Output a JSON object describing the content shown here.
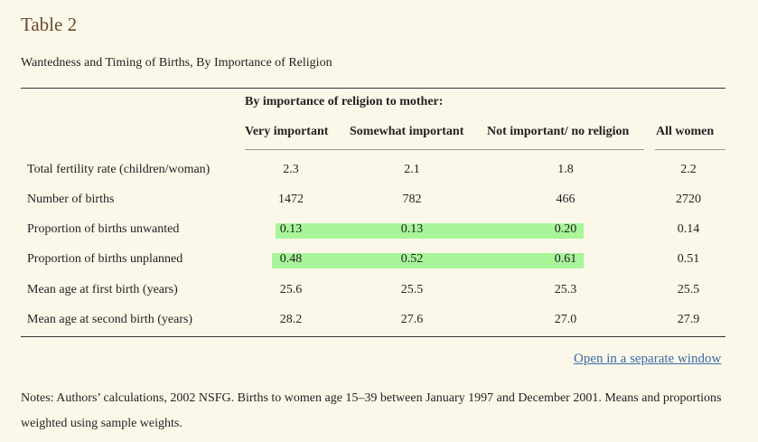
{
  "table": {
    "title": "Table 2",
    "caption": "Wantedness and Timing of Births, By Importance of Religion",
    "group_header": "By importance of religion to mother:",
    "columns": [
      "Very important",
      "Somewhat important",
      "Not important/ no religion",
      "All women"
    ],
    "rows": [
      {
        "label": "Total fertility rate (children/woman)",
        "values": [
          "2.3",
          "2.1",
          "1.8",
          "2.2"
        ],
        "highlight": false
      },
      {
        "label": "Number of births",
        "values": [
          "1472",
          "782",
          "466",
          "2720"
        ],
        "highlight": false
      },
      {
        "label": "Proportion of births unwanted",
        "values": [
          "0.13",
          "0.13",
          "0.20",
          "0.14"
        ],
        "highlight": true
      },
      {
        "label": "Proportion of births unplanned",
        "values": [
          "0.48",
          "0.52",
          "0.61",
          "0.51"
        ],
        "highlight": true
      },
      {
        "label": "Mean age at first birth (years)",
        "values": [
          "25.6",
          "25.5",
          "25.3",
          "25.5"
        ],
        "highlight": false
      },
      {
        "label": "Mean age at second birth (years)",
        "values": [
          "28.2",
          "27.6",
          "27.0",
          "27.9"
        ],
        "highlight": false
      }
    ]
  },
  "link_text": "Open in a separate window",
  "notes": "Notes: Authors’ calculations, 2002 NSFG. Births to women age 15–39 between January 1997 and December 2001. Means and proportions weighted using sample weights.",
  "colors": {
    "background": "#fbf8ea",
    "title": "#6b4a2a",
    "highlight": "#a9f59a",
    "link": "#3b6aa8"
  }
}
